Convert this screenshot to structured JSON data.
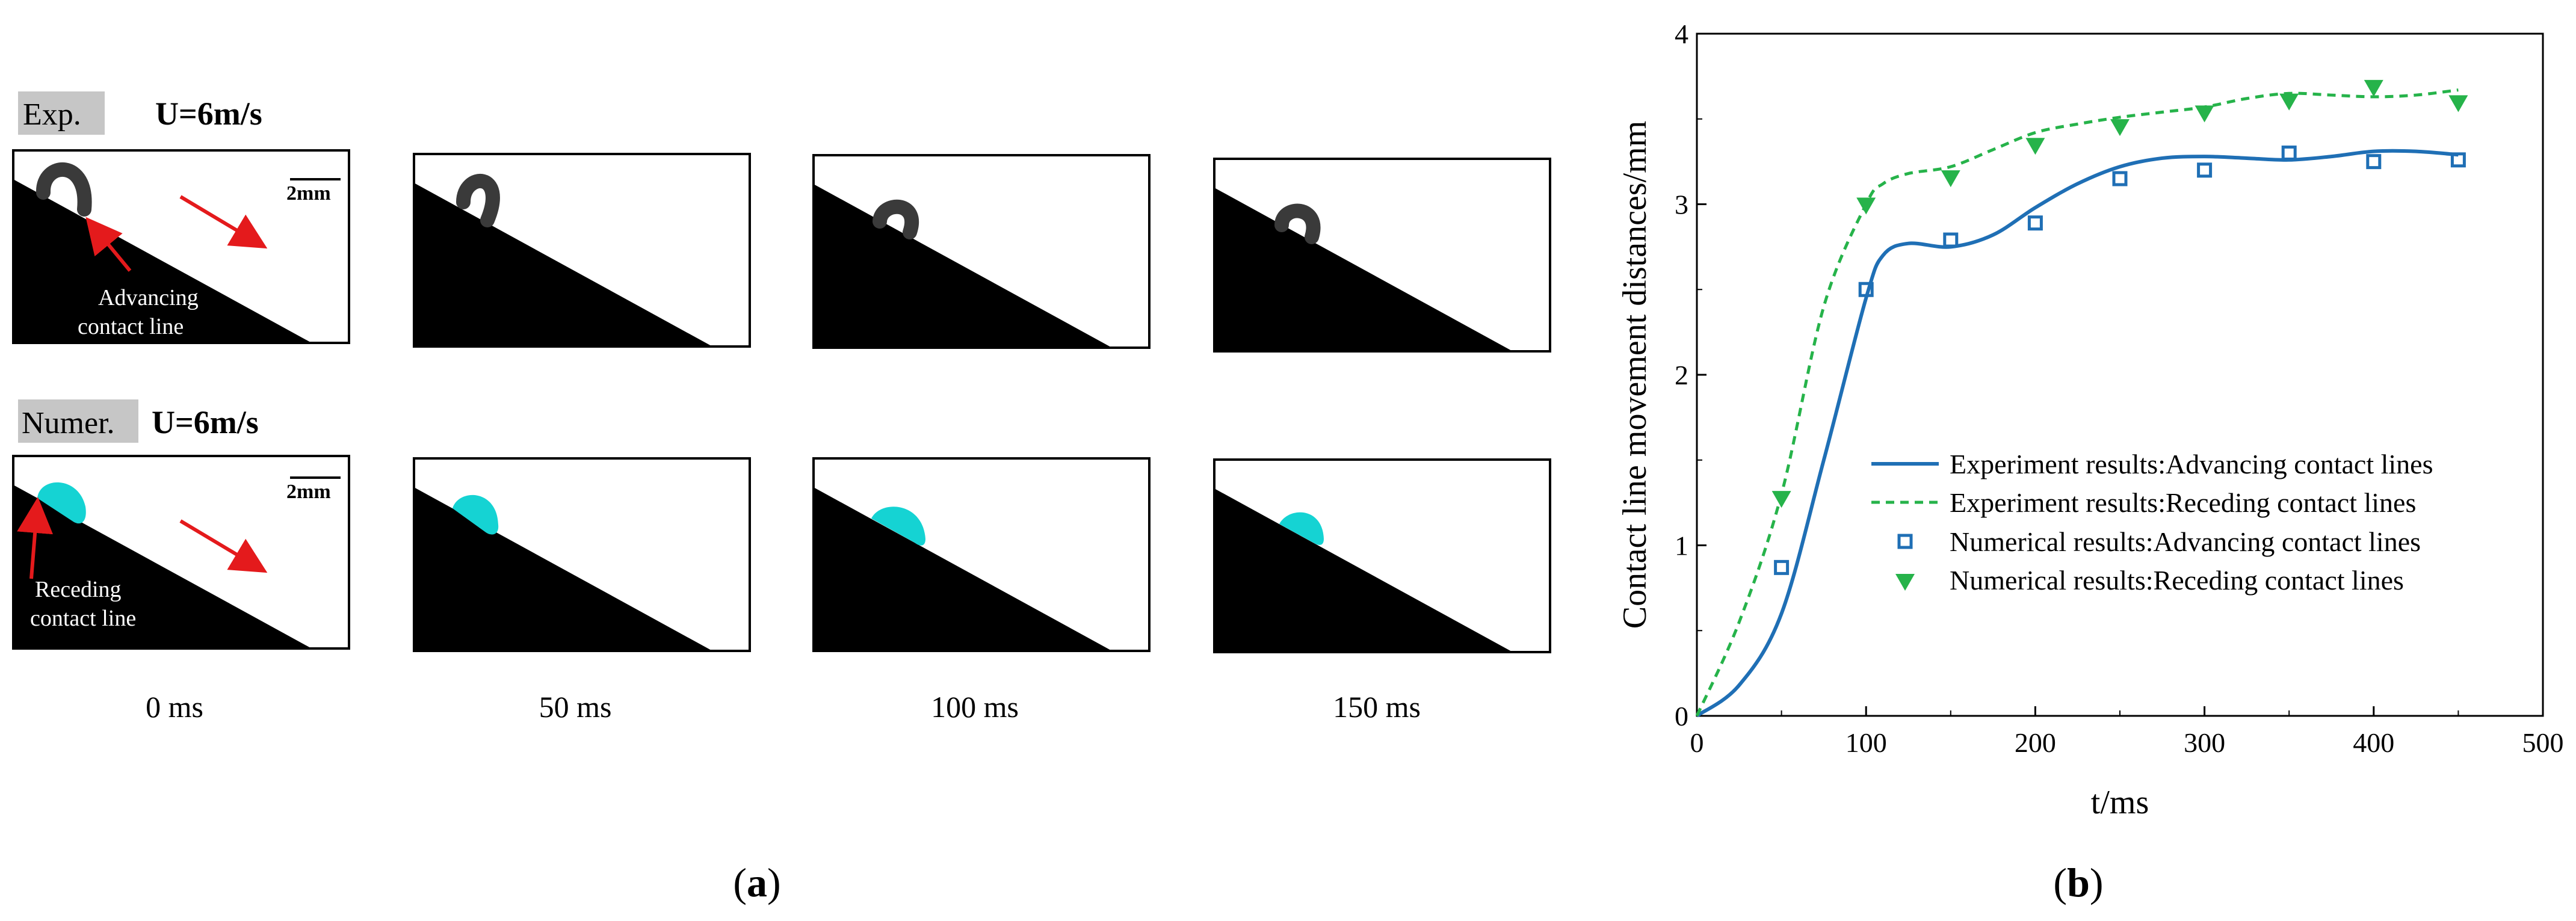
{
  "panel_a": {
    "rows": [
      {
        "tag": "Exp.",
        "velocity": "U=6m/s",
        "scale": "2mm",
        "annotation_lines": [
          "Advancing",
          "contact line"
        ]
      },
      {
        "tag": "Numer.",
        "velocity": "U=6m/s",
        "scale": "2mm",
        "annotation_lines": [
          "Receding",
          "contact line"
        ]
      }
    ],
    "times": [
      "0 ms",
      "50 ms",
      "100 ms",
      "150 ms"
    ],
    "caption_open": "(",
    "caption_letter": "a",
    "caption_close": ")",
    "colors": {
      "droplet_exp": "#3a3a3a",
      "droplet_num": "#15d3d3",
      "arrow": "#e41a1c",
      "solid": "#000000",
      "tag_bg": "#c6c6c6"
    }
  },
  "panel_b": {
    "caption_open": "(",
    "caption_letter": "b",
    "caption_close": ")"
  },
  "chart_data": {
    "type": "line",
    "title": "",
    "xlabel": "t/ms",
    "ylabel": "Contact line movement distances/mm",
    "xlim": [
      0,
      500
    ],
    "ylim": [
      0,
      4
    ],
    "xticks": [
      0,
      100,
      200,
      300,
      400,
      500
    ],
    "yticks": [
      0,
      1,
      2,
      3,
      4
    ],
    "legend_position": "right",
    "series": [
      {
        "name": "Experiment results:Advancing contact lines",
        "kind": "line",
        "style": "solid",
        "color": "#1f6fb5",
        "x": [
          0,
          25,
          50,
          75,
          100,
          110,
          125,
          150,
          175,
          200,
          225,
          250,
          275,
          300,
          325,
          350,
          375,
          400,
          425,
          450
        ],
        "y": [
          0,
          0.18,
          0.6,
          1.5,
          2.45,
          2.7,
          2.77,
          2.75,
          2.82,
          2.98,
          3.12,
          3.22,
          3.27,
          3.28,
          3.27,
          3.26,
          3.28,
          3.31,
          3.31,
          3.29
        ]
      },
      {
        "name": "Experiment results:Receding contact lines",
        "kind": "line",
        "style": "dashed",
        "color": "#26b34a",
        "x": [
          0,
          25,
          50,
          75,
          100,
          110,
          125,
          150,
          175,
          200,
          225,
          250,
          275,
          300,
          325,
          350,
          375,
          400,
          425,
          450
        ],
        "y": [
          0,
          0.55,
          1.3,
          2.4,
          3.0,
          3.12,
          3.18,
          3.22,
          3.32,
          3.42,
          3.47,
          3.51,
          3.54,
          3.57,
          3.62,
          3.65,
          3.64,
          3.63,
          3.64,
          3.67
        ]
      },
      {
        "name": "Numerical results:Advancing contact lines",
        "kind": "scatter",
        "marker": "open-square",
        "color": "#1f6fb5",
        "x": [
          50,
          100,
          150,
          200,
          250,
          300,
          350,
          400,
          450
        ],
        "y": [
          0.87,
          2.5,
          2.79,
          2.89,
          3.15,
          3.2,
          3.3,
          3.25,
          3.26
        ]
      },
      {
        "name": "Numerical results:Receding contact lines",
        "kind": "scatter",
        "marker": "filled-down-triangle",
        "color": "#26b34a",
        "x": [
          50,
          100,
          150,
          200,
          250,
          300,
          350,
          400,
          450
        ],
        "y": [
          1.28,
          3.0,
          3.16,
          3.35,
          3.46,
          3.54,
          3.61,
          3.69,
          3.6
        ]
      }
    ]
  }
}
